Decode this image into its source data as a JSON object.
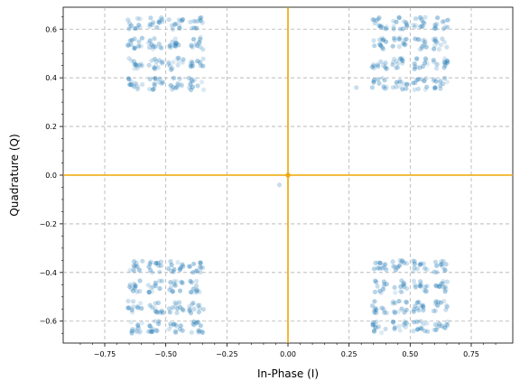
{
  "chart_data": {
    "type": "scatter",
    "xlabel": "In-Phase (I)",
    "ylabel": "Quadrature (Q)",
    "xlim": [
      -0.92,
      0.92
    ],
    "ylim": [
      -0.69,
      0.69
    ],
    "x_ticks": [
      -0.75,
      -0.5,
      -0.25,
      0.0,
      0.25,
      0.5,
      0.75
    ],
    "x_tick_labels": [
      "−0.75",
      "−0.50",
      "−0.25",
      "0.00",
      "0.25",
      "0.50",
      "0.75"
    ],
    "y_ticks": [
      -0.6,
      -0.4,
      -0.2,
      0.0,
      0.2,
      0.4,
      0.6
    ],
    "y_tick_labels": [
      "−0.6",
      "−0.4",
      "−0.2",
      "0.0",
      "0.2",
      "0.4",
      "0.6"
    ],
    "grid": true,
    "grid_style": "dashed",
    "reference_lines": {
      "x": 0.0,
      "y": 0.0,
      "color": "#f0a500"
    },
    "point_color": "#1f77b4",
    "cluster_centers": [
      [
        -0.5,
        0.5
      ],
      [
        0.5,
        0.5
      ],
      [
        -0.5,
        -0.5
      ],
      [
        0.5,
        -0.5
      ]
    ],
    "cluster_subgrid_offsets": [
      -0.125,
      -0.0417,
      0.0417,
      0.125
    ],
    "outliers": [
      [
        0.28,
        0.36
      ],
      [
        -0.035,
        -0.04
      ],
      [
        0.0,
        0.0
      ]
    ]
  }
}
